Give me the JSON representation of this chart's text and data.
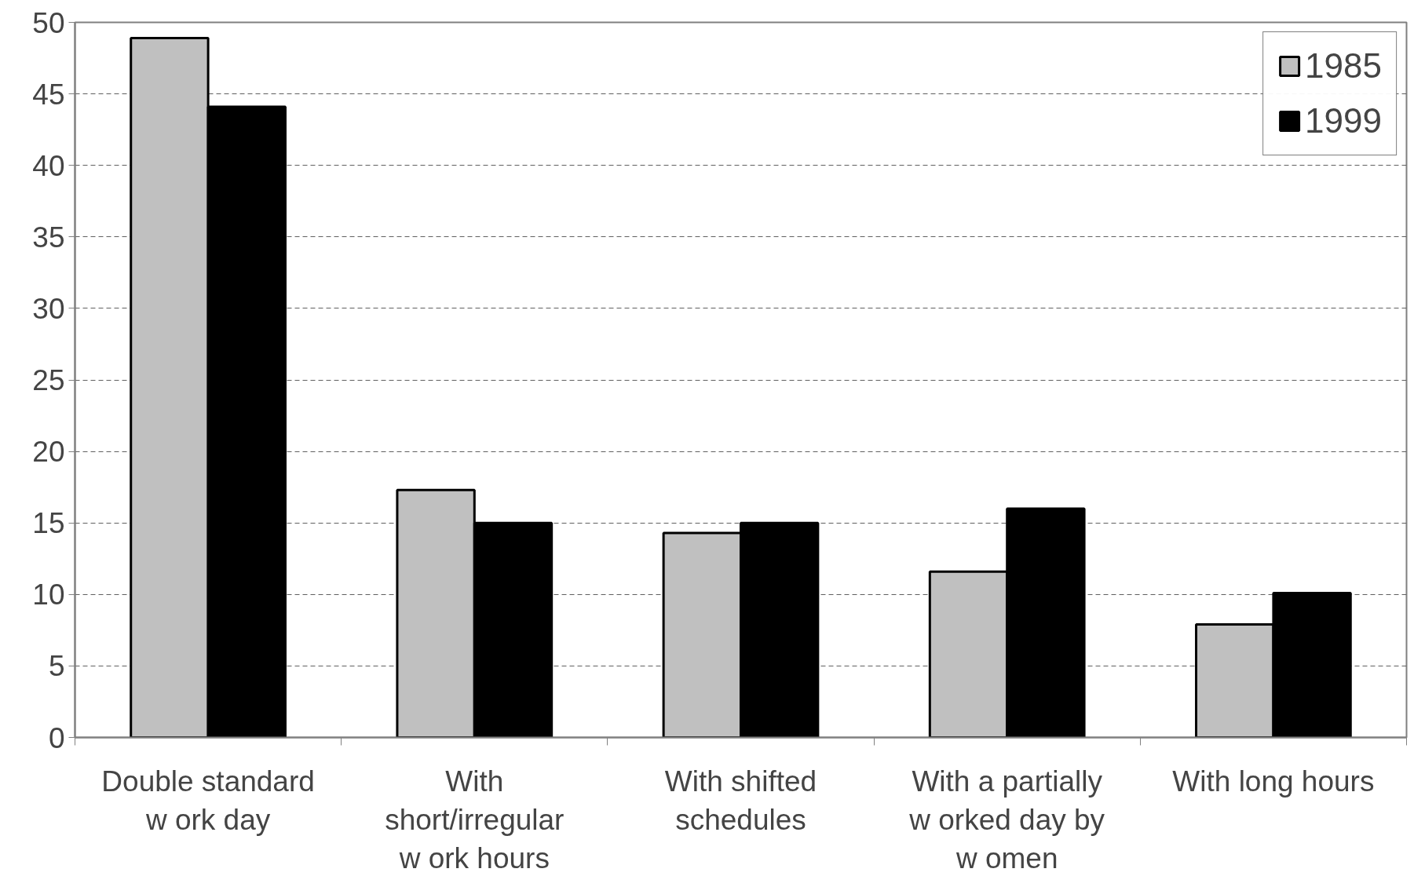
{
  "chart_data": {
    "type": "bar",
    "categories": [
      "Double standard\nw ork day",
      "With\nshort/irregular\nw ork hours",
      "With shifted\nschedules",
      "With a partially\nw orked day by\nw omen",
      "With long hours"
    ],
    "series": [
      {
        "name": "1985",
        "color": "#c0c0c0",
        "values": [
          48.9,
          17.3,
          14.3,
          11.6,
          7.9
        ]
      },
      {
        "name": "1999",
        "color": "#000000",
        "values": [
          44.1,
          15.0,
          15.0,
          16.0,
          10.1
        ]
      }
    ],
    "ylim": [
      0,
      50
    ],
    "yticks": [
      0,
      5,
      10,
      15,
      20,
      25,
      30,
      35,
      40,
      45,
      50
    ],
    "grid": "y",
    "legend": "top right"
  }
}
